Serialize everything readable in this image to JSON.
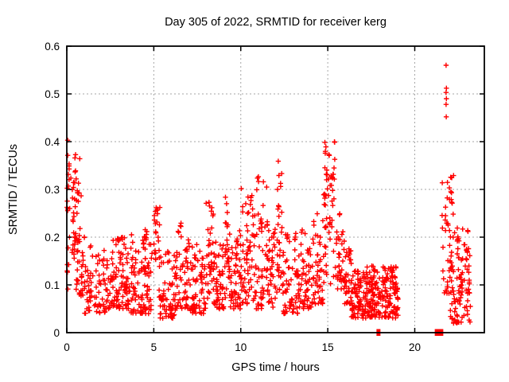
{
  "chart_data": {
    "type": "scatter",
    "title": "Day 305 of 2022, SRMTID for receiver kerg",
    "xlabel": "GPS time / hours",
    "ylabel": "SRMTID / TECUs",
    "xlim": [
      0,
      24
    ],
    "ylim": [
      0,
      0.6
    ],
    "xticks": [
      {
        "v": 0,
        "label": "0"
      },
      {
        "v": 5,
        "label": "5"
      },
      {
        "v": 10,
        "label": "10"
      },
      {
        "v": 15,
        "label": "15"
      },
      {
        "v": 20,
        "label": "20"
      }
    ],
    "yticks": [
      {
        "v": 0.0,
        "label": "0"
      },
      {
        "v": 0.1,
        "label": "0.1"
      },
      {
        "v": 0.2,
        "label": "0.2"
      },
      {
        "v": 0.3,
        "label": "0.3"
      },
      {
        "v": 0.4,
        "label": "0.4"
      },
      {
        "v": 0.5,
        "label": "0.5"
      },
      {
        "v": 0.6,
        "label": "0.6"
      }
    ],
    "grid": {
      "show": true,
      "color": "#a6a6a6",
      "style": "dotted"
    },
    "legend": null,
    "marker": {
      "shape": "plus",
      "color": "#ff0000",
      "size": 7
    },
    "border_color": "#000000",
    "clusters": [
      {
        "x0": 0.0,
        "x1": 0.15,
        "ymin": 0.08,
        "ymax": 0.4,
        "n": 18,
        "bias": 1.0
      },
      {
        "x0": 0.15,
        "x1": 0.5,
        "ymin": 0.15,
        "ymax": 0.33,
        "n": 22,
        "bias": 1.0
      },
      {
        "x0": 0.45,
        "x1": 0.85,
        "ymin": 0.16,
        "ymax": 0.38,
        "n": 26,
        "bias": 0.9
      },
      {
        "x0": 0.5,
        "x1": 1.1,
        "ymin": 0.07,
        "ymax": 0.2,
        "n": 28,
        "bias": 1.2
      },
      {
        "x0": 1.0,
        "x1": 2.2,
        "ymin": 0.04,
        "ymax": 0.2,
        "n": 70,
        "bias": 1.5
      },
      {
        "x0": 2.2,
        "x1": 3.6,
        "ymin": 0.05,
        "ymax": 0.2,
        "n": 110,
        "bias": 1.5
      },
      {
        "x0": 3.6,
        "x1": 4.9,
        "ymin": 0.04,
        "ymax": 0.21,
        "n": 100,
        "bias": 1.5
      },
      {
        "x0": 4.4,
        "x1": 4.6,
        "ymin": 0.12,
        "ymax": 0.22,
        "n": 8,
        "bias": 1.0
      },
      {
        "x0": 5.0,
        "x1": 5.35,
        "ymin": 0.13,
        "ymax": 0.28,
        "n": 22,
        "bias": 0.9
      },
      {
        "x0": 5.3,
        "x1": 6.4,
        "ymin": 0.03,
        "ymax": 0.17,
        "n": 80,
        "bias": 1.4
      },
      {
        "x0": 6.4,
        "x1": 7.1,
        "ymin": 0.05,
        "ymax": 0.23,
        "n": 48,
        "bias": 1.3
      },
      {
        "x0": 7.1,
        "x1": 8.0,
        "ymin": 0.04,
        "ymax": 0.19,
        "n": 70,
        "bias": 1.4
      },
      {
        "x0": 8.0,
        "x1": 8.45,
        "ymin": 0.06,
        "ymax": 0.28,
        "n": 35,
        "bias": 1.1
      },
      {
        "x0": 8.45,
        "x1": 9.35,
        "ymin": 0.05,
        "ymax": 0.21,
        "n": 65,
        "bias": 1.4
      },
      {
        "x0": 9.1,
        "x1": 9.3,
        "ymin": 0.15,
        "ymax": 0.29,
        "n": 10,
        "bias": 1.0
      },
      {
        "x0": 9.35,
        "x1": 10.0,
        "ymin": 0.05,
        "ymax": 0.22,
        "n": 55,
        "bias": 1.4
      },
      {
        "x0": 10.0,
        "x1": 10.75,
        "ymin": 0.06,
        "ymax": 0.31,
        "n": 60,
        "bias": 1.4
      },
      {
        "x0": 10.75,
        "x1": 11.5,
        "ymin": 0.05,
        "ymax": 0.33,
        "n": 55,
        "bias": 1.5
      },
      {
        "x0": 11.5,
        "x1": 12.0,
        "ymin": 0.05,
        "ymax": 0.25,
        "n": 42,
        "bias": 1.4
      },
      {
        "x0": 12.05,
        "x1": 12.4,
        "ymin": 0.08,
        "ymax": 0.37,
        "n": 30,
        "bias": 1.1
      },
      {
        "x0": 12.4,
        "x1": 13.3,
        "ymin": 0.04,
        "ymax": 0.21,
        "n": 65,
        "bias": 1.5
      },
      {
        "x0": 13.3,
        "x1": 14.1,
        "ymin": 0.05,
        "ymax": 0.22,
        "n": 55,
        "bias": 1.5
      },
      {
        "x0": 14.1,
        "x1": 14.75,
        "ymin": 0.06,
        "ymax": 0.26,
        "n": 48,
        "bias": 1.4
      },
      {
        "x0": 14.75,
        "x1": 15.45,
        "ymin": 0.1,
        "ymax": 0.4,
        "n": 62,
        "bias": 0.9
      },
      {
        "x0": 15.45,
        "x1": 15.95,
        "ymin": 0.09,
        "ymax": 0.25,
        "n": 35,
        "bias": 1.2
      },
      {
        "x0": 15.9,
        "x1": 16.35,
        "ymin": 0.06,
        "ymax": 0.18,
        "n": 35,
        "bias": 1.3
      },
      {
        "x0": 16.35,
        "x1": 17.25,
        "ymin": 0.03,
        "ymax": 0.13,
        "n": 90,
        "bias": 1.2
      },
      {
        "x0": 17.25,
        "x1": 18.05,
        "ymin": 0.03,
        "ymax": 0.145,
        "n": 90,
        "bias": 1.2
      },
      {
        "x0": 18.1,
        "x1": 19.05,
        "ymin": 0.03,
        "ymax": 0.14,
        "n": 100,
        "bias": 1.2
      },
      {
        "x0": 21.55,
        "x1": 22.25,
        "ymin": 0.08,
        "ymax": 0.33,
        "n": 48,
        "bias": 1.2
      },
      {
        "x0": 22.0,
        "x1": 23.2,
        "ymin": 0.02,
        "ymax": 0.22,
        "n": 100,
        "bias": 1.5
      }
    ],
    "outliers": [
      [
        0.05,
        0.403
      ],
      [
        21.8,
        0.56
      ],
      [
        21.82,
        0.512
      ],
      [
        21.8,
        0.503
      ],
      [
        21.82,
        0.49
      ],
      [
        21.8,
        0.478
      ],
      [
        21.81,
        0.452
      ]
    ],
    "zero_value_bars": [
      {
        "x0": 17.8,
        "x1": 18.02
      },
      {
        "x0": 21.15,
        "x1": 21.64
      }
    ]
  }
}
